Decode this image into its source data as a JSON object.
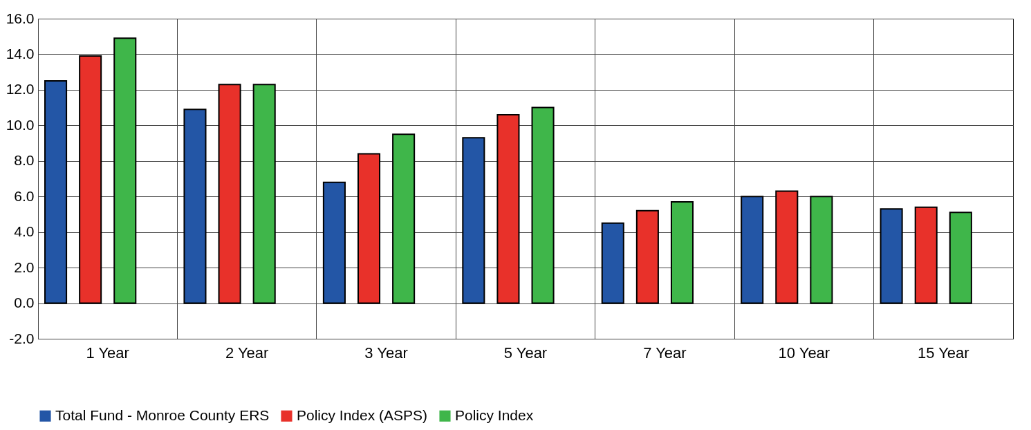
{
  "chart_data": {
    "type": "bar",
    "categories": [
      "1 Year",
      "2 Year",
      "3 Year",
      "5 Year",
      "7 Year",
      "10 Year",
      "15 Year"
    ],
    "series": [
      {
        "name": "Total Fund - Monroe County ERS",
        "color": "#2356a6",
        "values": [
          12.5,
          10.9,
          6.8,
          9.3,
          4.5,
          6.0,
          5.3
        ]
      },
      {
        "name": "Policy Index (ASPS)",
        "color": "#e8312a",
        "values": [
          13.9,
          12.3,
          8.4,
          10.6,
          5.2,
          6.3,
          5.4
        ]
      },
      {
        "name": "Policy Index",
        "color": "#3fb64a",
        "values": [
          14.9,
          12.3,
          9.5,
          11.0,
          5.7,
          6.0,
          5.1
        ]
      }
    ],
    "ylim": [
      -2,
      16
    ],
    "yticks": [
      {
        "value": -2,
        "label": "-2.0"
      },
      {
        "value": 0,
        "label": "0.0"
      },
      {
        "value": 2,
        "label": "2.0"
      },
      {
        "value": 4,
        "label": "4.0"
      },
      {
        "value": 6,
        "label": "6.0"
      },
      {
        "value": 8,
        "label": "8.0"
      },
      {
        "value": 10,
        "label": "10.0"
      },
      {
        "value": 12,
        "label": "12.0"
      },
      {
        "value": 14,
        "label": "14.0"
      },
      {
        "value": 16,
        "label": "16.0"
      }
    ],
    "grid": true,
    "legend": "bottom"
  }
}
